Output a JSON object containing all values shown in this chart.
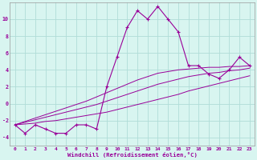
{
  "hours": [
    0,
    1,
    2,
    3,
    4,
    5,
    6,
    7,
    8,
    9,
    10,
    11,
    12,
    13,
    14,
    15,
    16,
    17,
    18,
    19,
    20,
    21,
    22,
    23
  ],
  "windchill": [
    -2.5,
    -3.5,
    -2.5,
    -3.0,
    -3.5,
    -3.5,
    -2.5,
    -2.5,
    -3.0,
    2.0,
    5.5,
    9.0,
    11.0,
    10.0,
    11.5,
    10.0,
    8.5,
    4.5,
    4.5,
    3.5,
    3.0,
    4.0,
    5.5,
    4.5
  ],
  "line1": [
    -2.5,
    -2.4,
    -2.3,
    -2.1,
    -2.0,
    -1.8,
    -1.6,
    -1.4,
    -1.2,
    -1.0,
    -0.7,
    -0.4,
    -0.1,
    0.2,
    0.5,
    0.8,
    1.1,
    1.5,
    1.8,
    2.1,
    2.4,
    2.7,
    3.0,
    3.3
  ],
  "line2": [
    -2.5,
    -2.2,
    -1.9,
    -1.6,
    -1.3,
    -1.0,
    -0.7,
    -0.4,
    -0.1,
    0.3,
    0.7,
    1.1,
    1.5,
    1.9,
    2.3,
    2.6,
    2.9,
    3.2,
    3.4,
    3.6,
    3.7,
    3.9,
    4.0,
    4.2
  ],
  "line3": [
    -2.5,
    -2.1,
    -1.7,
    -1.3,
    -0.9,
    -0.5,
    -0.1,
    0.3,
    0.8,
    1.3,
    1.8,
    2.3,
    2.8,
    3.2,
    3.6,
    3.8,
    4.0,
    4.1,
    4.2,
    4.3,
    4.3,
    4.4,
    4.4,
    4.5
  ],
  "line_color": "#990099",
  "bg_color": "#d8f5f0",
  "grid_color": "#b0ddd8",
  "xlabel": "Windchill (Refroidissement éolien,°C)",
  "ylim": [
    -5,
    12
  ],
  "yticks": [
    -4,
    -2,
    0,
    2,
    4,
    6,
    8,
    10
  ],
  "xlim": [
    -0.5,
    23.5
  ],
  "tick_fontsize": 4.5,
  "xlabel_fontsize": 5.2
}
